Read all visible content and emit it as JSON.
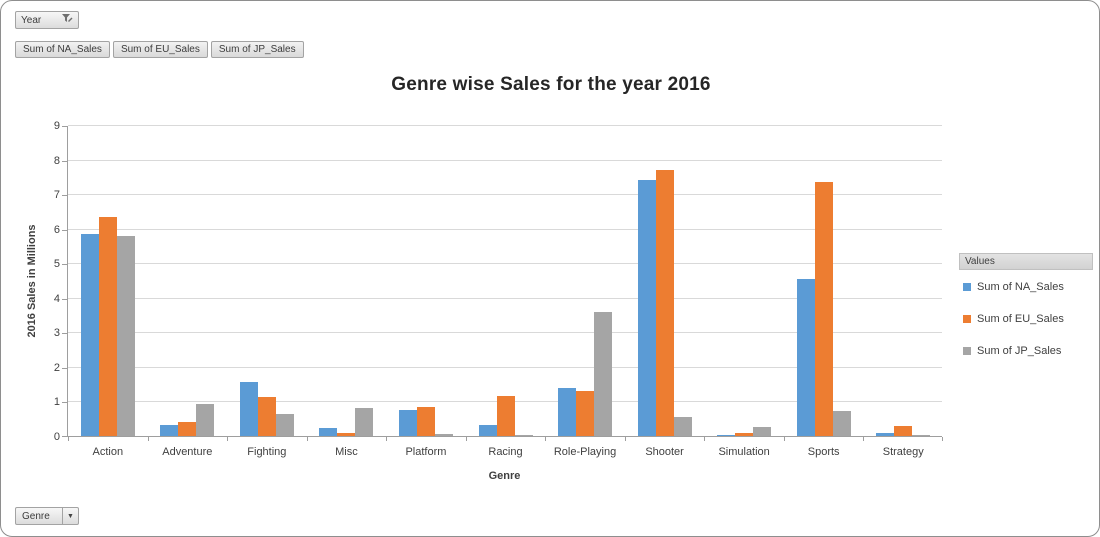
{
  "pivot_controls": {
    "year_field_button": "Year",
    "genre_field_button": "Genre",
    "value_field_buttons": [
      "Sum of NA_Sales",
      "Sum of EU_Sales",
      "Sum of JP_Sales"
    ]
  },
  "chart_data": {
    "type": "bar",
    "title": "Genre wise Sales for the year 2016",
    "xlabel": "Genre",
    "ylabel": "2016 Sales in Millions",
    "ylim": [
      0,
      9
    ],
    "ytick_interval": 1,
    "grid": true,
    "legend_title": "Values",
    "legend_position": "right",
    "categories": [
      "Action",
      "Adventure",
      "Fighting",
      "Misc",
      "Platform",
      "Racing",
      "Role-Playing",
      "Shooter",
      "Simulation",
      "Sports",
      "Strategy"
    ],
    "series": [
      {
        "name": "Sum of NA_Sales",
        "color": "#5B9BD5",
        "values": [
          5.85,
          0.32,
          1.57,
          0.22,
          0.75,
          0.32,
          1.4,
          7.4,
          0.02,
          4.55,
          0.08
        ]
      },
      {
        "name": "Sum of EU_Sales",
        "color": "#ED7D31",
        "values": [
          6.35,
          0.42,
          1.12,
          0.08,
          0.85,
          1.15,
          1.3,
          7.7,
          0.1,
          7.35,
          0.3
        ]
      },
      {
        "name": "Sum of JP_Sales",
        "color": "#A5A5A5",
        "values": [
          5.8,
          0.92,
          0.63,
          0.8,
          0.05,
          0.02,
          3.6,
          0.55,
          0.26,
          0.73,
          0.02
        ]
      }
    ]
  },
  "colors": {
    "gridline": "#D9D9D9",
    "axis_line": "#9E9E9E",
    "button_face": "#E8E8E8",
    "legend_header_bg": "#D9D9D9"
  }
}
